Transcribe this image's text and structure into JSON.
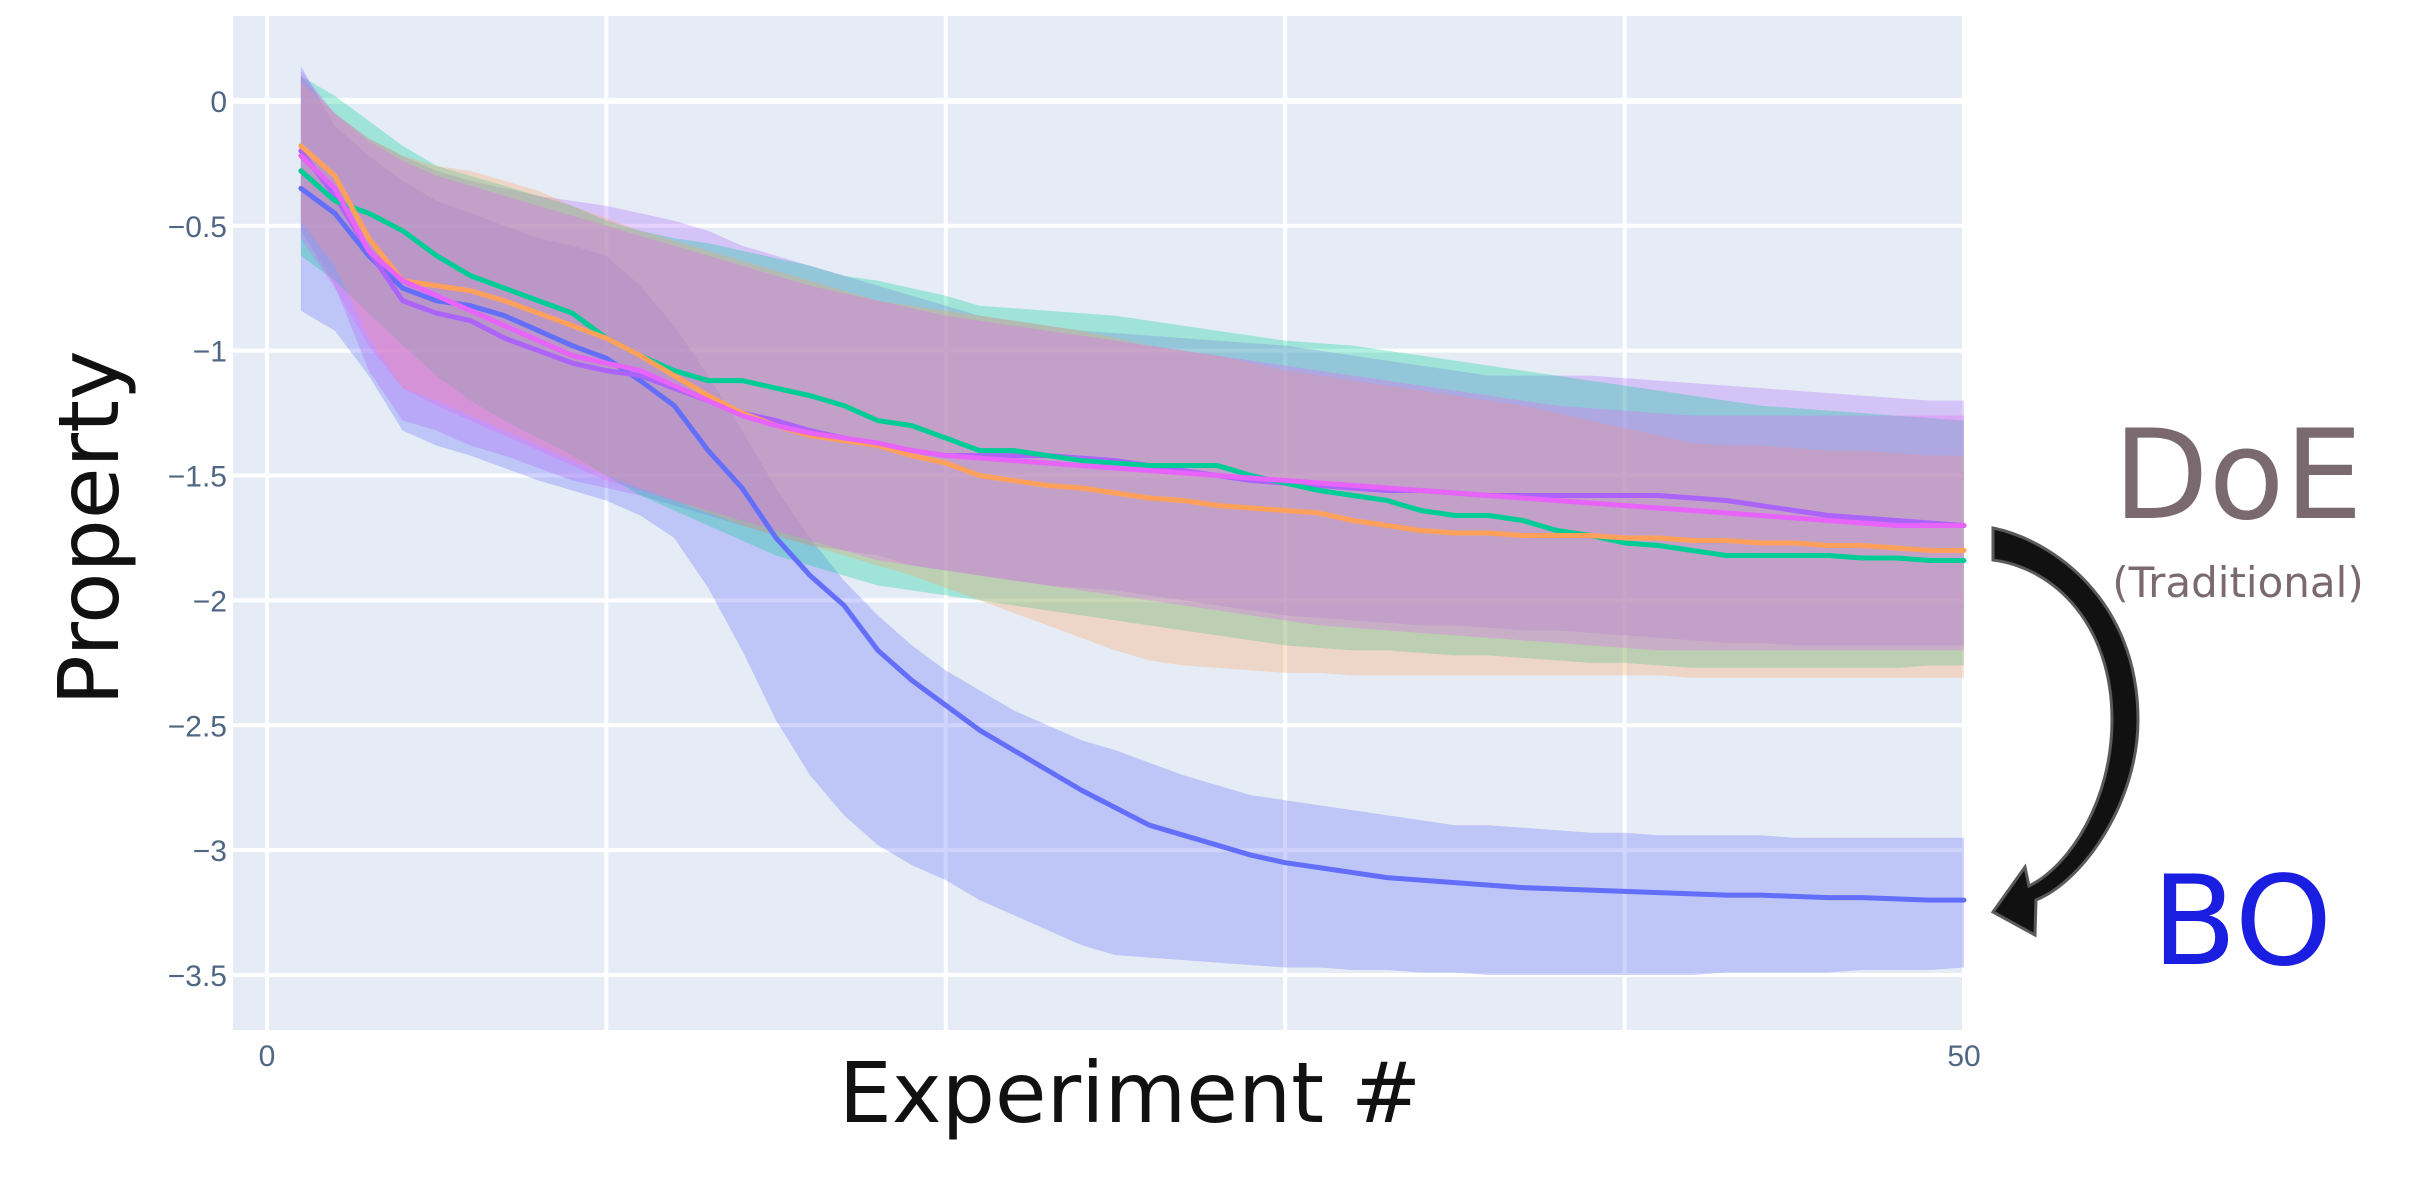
{
  "chart_data": {
    "type": "line",
    "xlabel": "Experiment #",
    "ylabel": "Property",
    "xlim": [
      -1,
      50
    ],
    "ylim": [
      -3.72,
      0.34
    ],
    "x_tick_labels": [
      "0",
      "50"
    ],
    "x_tick_values": [
      0,
      50
    ],
    "x_grid": [
      0,
      10,
      20,
      30,
      40,
      50
    ],
    "y_ticks": [
      0,
      -0.5,
      -1,
      -1.5,
      -2,
      -2.5,
      -3,
      -3.5
    ],
    "y_tick_labels": [
      "0",
      "−0.5",
      "−1",
      "−1.5",
      "−2",
      "−2.5",
      "−3",
      "−3.5"
    ],
    "grid": true,
    "plot_background": "#e5ecf6",
    "x": [
      1,
      2,
      3,
      4,
      5,
      6,
      7,
      8,
      9,
      10,
      11,
      12,
      13,
      14,
      15,
      16,
      17,
      18,
      19,
      20,
      21,
      22,
      23,
      24,
      25,
      26,
      27,
      28,
      29,
      30,
      31,
      32,
      33,
      34,
      35,
      36,
      37,
      38,
      39,
      40,
      41,
      42,
      43,
      44,
      45,
      46,
      47,
      48,
      49,
      50
    ],
    "series": [
      {
        "color": "#636efa",
        "values": [
          -0.35,
          -0.45,
          -0.62,
          -0.75,
          -0.8,
          -0.82,
          -0.86,
          -0.92,
          -0.98,
          -1.03,
          -1.12,
          -1.22,
          -1.4,
          -1.55,
          -1.75,
          -1.9,
          -2.02,
          -2.2,
          -2.32,
          -2.42,
          -2.52,
          -2.6,
          -2.68,
          -2.76,
          -2.83,
          -2.9,
          -2.94,
          -2.98,
          -3.02,
          -3.05,
          -3.07,
          -3.09,
          -3.11,
          -3.12,
          -3.13,
          -3.14,
          -3.15,
          -3.155,
          -3.16,
          -3.165,
          -3.17,
          -3.175,
          -3.18,
          -3.18,
          -3.185,
          -3.19,
          -3.19,
          -3.195,
          -3.2,
          -3.2
        ],
        "upper": [
          0.14,
          -0.1,
          -0.22,
          -0.32,
          -0.4,
          -0.45,
          -0.5,
          -0.55,
          -0.58,
          -0.62,
          -0.74,
          -0.9,
          -1.1,
          -1.32,
          -1.55,
          -1.75,
          -1.92,
          -2.06,
          -2.18,
          -2.28,
          -2.36,
          -2.44,
          -2.5,
          -2.56,
          -2.6,
          -2.65,
          -2.7,
          -2.74,
          -2.78,
          -2.8,
          -2.82,
          -2.84,
          -2.86,
          -2.88,
          -2.9,
          -2.9,
          -2.91,
          -2.92,
          -2.93,
          -2.93,
          -2.94,
          -2.94,
          -2.94,
          -2.94,
          -2.95,
          -2.95,
          -2.95,
          -2.95,
          -2.95,
          -2.95
        ],
        "lower": [
          -0.84,
          -0.92,
          -1.1,
          -1.32,
          -1.38,
          -1.42,
          -1.47,
          -1.52,
          -1.56,
          -1.6,
          -1.66,
          -1.75,
          -1.95,
          -2.2,
          -2.48,
          -2.7,
          -2.86,
          -2.98,
          -3.06,
          -3.12,
          -3.2,
          -3.26,
          -3.32,
          -3.38,
          -3.42,
          -3.43,
          -3.44,
          -3.45,
          -3.46,
          -3.47,
          -3.47,
          -3.48,
          -3.48,
          -3.49,
          -3.49,
          -3.5,
          -3.5,
          -3.5,
          -3.5,
          -3.5,
          -3.5,
          -3.5,
          -3.49,
          -3.49,
          -3.49,
          -3.49,
          -3.48,
          -3.48,
          -3.48,
          -3.47
        ]
      },
      {
        "color": "#ab63fa",
        "values": [
          -0.2,
          -0.38,
          -0.6,
          -0.8,
          -0.85,
          -0.88,
          -0.95,
          -1.0,
          -1.05,
          -1.08,
          -1.1,
          -1.15,
          -1.2,
          -1.25,
          -1.28,
          -1.32,
          -1.35,
          -1.38,
          -1.4,
          -1.42,
          -1.42,
          -1.42,
          -1.42,
          -1.43,
          -1.44,
          -1.46,
          -1.48,
          -1.5,
          -1.52,
          -1.53,
          -1.54,
          -1.55,
          -1.56,
          -1.56,
          -1.57,
          -1.58,
          -1.58,
          -1.58,
          -1.58,
          -1.58,
          -1.58,
          -1.59,
          -1.6,
          -1.62,
          -1.64,
          -1.66,
          -1.67,
          -1.68,
          -1.69,
          -1.7
        ],
        "upper": [
          0.1,
          -0.05,
          -0.15,
          -0.22,
          -0.28,
          -0.32,
          -0.35,
          -0.38,
          -0.4,
          -0.42,
          -0.45,
          -0.48,
          -0.52,
          -0.58,
          -0.62,
          -0.66,
          -0.7,
          -0.74,
          -0.78,
          -0.82,
          -0.86,
          -0.88,
          -0.9,
          -0.92,
          -0.93,
          -0.94,
          -0.95,
          -0.96,
          -0.97,
          -0.98,
          -1.0,
          -1.02,
          -1.04,
          -1.06,
          -1.08,
          -1.1,
          -1.1,
          -1.1,
          -1.1,
          -1.11,
          -1.12,
          -1.13,
          -1.14,
          -1.15,
          -1.16,
          -1.17,
          -1.18,
          -1.19,
          -1.2,
          -1.2
        ],
        "lower": [
          -0.52,
          -0.74,
          -1.08,
          -1.28,
          -1.32,
          -1.38,
          -1.42,
          -1.47,
          -1.52,
          -1.55,
          -1.58,
          -1.62,
          -1.66,
          -1.7,
          -1.74,
          -1.78,
          -1.8,
          -1.82,
          -1.86,
          -1.88,
          -1.9,
          -1.92,
          -1.94,
          -1.95,
          -1.96,
          -1.98,
          -2.0,
          -2.02,
          -2.04,
          -2.06,
          -2.07,
          -2.08,
          -2.09,
          -2.1,
          -2.1,
          -2.11,
          -2.12,
          -2.12,
          -2.13,
          -2.14,
          -2.15,
          -2.16,
          -2.17,
          -2.17,
          -2.18,
          -2.18,
          -2.18,
          -2.18,
          -2.18,
          -2.18
        ]
      },
      {
        "color": "#00cc96",
        "values": [
          -0.28,
          -0.4,
          -0.45,
          -0.52,
          -0.62,
          -0.7,
          -0.75,
          -0.8,
          -0.85,
          -0.95,
          -1.02,
          -1.08,
          -1.12,
          -1.12,
          -1.15,
          -1.18,
          -1.22,
          -1.28,
          -1.3,
          -1.35,
          -1.4,
          -1.4,
          -1.42,
          -1.44,
          -1.45,
          -1.46,
          -1.46,
          -1.46,
          -1.5,
          -1.53,
          -1.56,
          -1.58,
          -1.6,
          -1.64,
          -1.66,
          -1.66,
          -1.68,
          -1.72,
          -1.74,
          -1.77,
          -1.78,
          -1.8,
          -1.82,
          -1.82,
          -1.82,
          -1.82,
          -1.83,
          -1.83,
          -1.84,
          -1.84
        ],
        "upper": [
          0.1,
          0.02,
          -0.08,
          -0.18,
          -0.26,
          -0.3,
          -0.34,
          -0.38,
          -0.42,
          -0.48,
          -0.52,
          -0.55,
          -0.57,
          -0.6,
          -0.63,
          -0.66,
          -0.7,
          -0.72,
          -0.75,
          -0.78,
          -0.82,
          -0.83,
          -0.84,
          -0.85,
          -0.86,
          -0.88,
          -0.9,
          -0.92,
          -0.94,
          -0.96,
          -0.97,
          -0.98,
          -1.0,
          -1.02,
          -1.04,
          -1.06,
          -1.08,
          -1.1,
          -1.12,
          -1.14,
          -1.16,
          -1.18,
          -1.2,
          -1.22,
          -1.23,
          -1.24,
          -1.25,
          -1.26,
          -1.27,
          -1.28
        ],
        "lower": [
          -0.62,
          -0.72,
          -0.85,
          -0.98,
          -1.1,
          -1.2,
          -1.28,
          -1.35,
          -1.42,
          -1.5,
          -1.58,
          -1.64,
          -1.7,
          -1.76,
          -1.82,
          -1.86,
          -1.9,
          -1.94,
          -1.96,
          -1.98,
          -2.0,
          -2.02,
          -2.04,
          -2.06,
          -2.08,
          -2.1,
          -2.12,
          -2.14,
          -2.16,
          -2.18,
          -2.19,
          -2.2,
          -2.2,
          -2.21,
          -2.22,
          -2.22,
          -2.23,
          -2.24,
          -2.25,
          -2.25,
          -2.26,
          -2.27,
          -2.27,
          -2.27,
          -2.27,
          -2.27,
          -2.27,
          -2.27,
          -2.26,
          -2.26
        ]
      },
      {
        "color": "#ffa15a",
        "values": [
          -0.18,
          -0.3,
          -0.55,
          -0.72,
          -0.74,
          -0.76,
          -0.8,
          -0.85,
          -0.9,
          -0.95,
          -1.02,
          -1.1,
          -1.18,
          -1.25,
          -1.3,
          -1.34,
          -1.36,
          -1.38,
          -1.42,
          -1.45,
          -1.5,
          -1.52,
          -1.54,
          -1.55,
          -1.57,
          -1.59,
          -1.6,
          -1.62,
          -1.63,
          -1.64,
          -1.65,
          -1.68,
          -1.7,
          -1.72,
          -1.73,
          -1.73,
          -1.74,
          -1.74,
          -1.74,
          -1.75,
          -1.75,
          -1.76,
          -1.76,
          -1.77,
          -1.77,
          -1.78,
          -1.78,
          -1.79,
          -1.8,
          -1.8
        ],
        "upper": [
          0.08,
          -0.05,
          -0.15,
          -0.22,
          -0.26,
          -0.28,
          -0.32,
          -0.36,
          -0.42,
          -0.47,
          -0.52,
          -0.56,
          -0.6,
          -0.64,
          -0.68,
          -0.72,
          -0.76,
          -0.8,
          -0.82,
          -0.84,
          -0.86,
          -0.88,
          -0.9,
          -0.92,
          -0.95,
          -0.98,
          -1.0,
          -1.02,
          -1.05,
          -1.08,
          -1.1,
          -1.12,
          -1.14,
          -1.16,
          -1.18,
          -1.2,
          -1.22,
          -1.25,
          -1.28,
          -1.31,
          -1.34,
          -1.37,
          -1.38,
          -1.38,
          -1.39,
          -1.4,
          -1.4,
          -1.41,
          -1.42,
          -1.42
        ],
        "lower": [
          -0.48,
          -0.66,
          -0.95,
          -1.15,
          -1.2,
          -1.26,
          -1.32,
          -1.38,
          -1.44,
          -1.5,
          -1.55,
          -1.6,
          -1.65,
          -1.7,
          -1.74,
          -1.78,
          -1.82,
          -1.86,
          -1.9,
          -1.95,
          -2.0,
          -2.05,
          -2.1,
          -2.15,
          -2.2,
          -2.24,
          -2.26,
          -2.27,
          -2.28,
          -2.29,
          -2.29,
          -2.3,
          -2.3,
          -2.3,
          -2.3,
          -2.3,
          -2.3,
          -2.3,
          -2.3,
          -2.3,
          -2.3,
          -2.31,
          -2.31,
          -2.31,
          -2.31,
          -2.31,
          -2.31,
          -2.31,
          -2.31,
          -2.31
        ]
      },
      {
        "color": "#e763fa",
        "values": [
          -0.22,
          -0.35,
          -0.6,
          -0.72,
          -0.78,
          -0.84,
          -0.9,
          -0.96,
          -1.02,
          -1.05,
          -1.08,
          -1.14,
          -1.2,
          -1.26,
          -1.3,
          -1.33,
          -1.35,
          -1.37,
          -1.4,
          -1.42,
          -1.43,
          -1.44,
          -1.45,
          -1.46,
          -1.47,
          -1.48,
          -1.49,
          -1.5,
          -1.51,
          -1.52,
          -1.53,
          -1.54,
          -1.55,
          -1.56,
          -1.57,
          -1.58,
          -1.59,
          -1.6,
          -1.61,
          -1.62,
          -1.63,
          -1.64,
          -1.65,
          -1.66,
          -1.67,
          -1.68,
          -1.69,
          -1.7,
          -1.7,
          -1.7
        ],
        "upper": [
          0.12,
          -0.05,
          -0.16,
          -0.24,
          -0.3,
          -0.34,
          -0.38,
          -0.42,
          -0.46,
          -0.5,
          -0.54,
          -0.58,
          -0.62,
          -0.66,
          -0.7,
          -0.74,
          -0.77,
          -0.8,
          -0.83,
          -0.86,
          -0.88,
          -0.9,
          -0.92,
          -0.94,
          -0.96,
          -0.98,
          -1.0,
          -1.02,
          -1.04,
          -1.06,
          -1.08,
          -1.1,
          -1.12,
          -1.14,
          -1.16,
          -1.18,
          -1.2,
          -1.22,
          -1.23,
          -1.24,
          -1.25,
          -1.26,
          -1.26,
          -1.26,
          -1.26,
          -1.26,
          -1.26,
          -1.26,
          -1.26,
          -1.26
        ],
        "lower": [
          -0.55,
          -0.75,
          -0.98,
          -1.15,
          -1.22,
          -1.28,
          -1.34,
          -1.4,
          -1.46,
          -1.52,
          -1.56,
          -1.6,
          -1.64,
          -1.68,
          -1.72,
          -1.76,
          -1.8,
          -1.84,
          -1.86,
          -1.88,
          -1.9,
          -1.92,
          -1.94,
          -1.96,
          -1.98,
          -2.0,
          -2.02,
          -2.04,
          -2.06,
          -2.08,
          -2.1,
          -2.11,
          -2.12,
          -2.13,
          -2.14,
          -2.15,
          -2.16,
          -2.17,
          -2.18,
          -2.19,
          -2.2,
          -2.2,
          -2.2,
          -2.2,
          -2.2,
          -2.2,
          -2.2,
          -2.2,
          -2.2,
          -2.2
        ]
      }
    ]
  },
  "annotations": {
    "doe_label": "DoE",
    "doe_sublabel": "(Traditional)",
    "doe_color": "#7a6a70",
    "bo_label": "BO",
    "bo_color": "#1a1ee0",
    "arrow_color": "#111111"
  }
}
